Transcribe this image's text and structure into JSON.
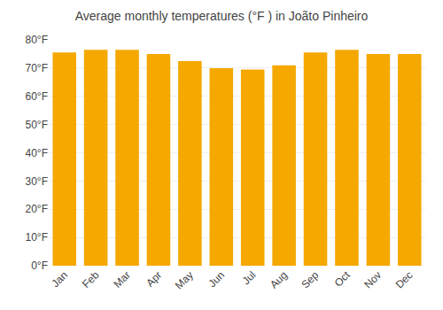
{
  "chart_data": {
    "type": "bar",
    "title": "Average monthly temperatures (°F ) in Joãto Pinheiro",
    "categories": [
      "Jan",
      "Feb",
      "Mar",
      "Apr",
      "May",
      "Jun",
      "Jul",
      "Aug",
      "Sep",
      "Oct",
      "Nov",
      "Dec"
    ],
    "values": [
      75.5,
      76.5,
      76.5,
      75.0,
      72.5,
      70.0,
      69.5,
      71.0,
      75.5,
      76.5,
      75.0,
      75.0
    ],
    "color": "#F5A800",
    "ylim": [
      0,
      80
    ],
    "yticks": [
      {
        "value": 0,
        "label": "0°F"
      },
      {
        "value": 10,
        "label": "10°F"
      },
      {
        "value": 20,
        "label": "20°F"
      },
      {
        "value": 30,
        "label": "30°F"
      },
      {
        "value": 40,
        "label": "40°F"
      },
      {
        "value": 50,
        "label": "50°F"
      },
      {
        "value": 60,
        "label": "60°F"
      },
      {
        "value": 70,
        "label": "70°F"
      },
      {
        "value": 80,
        "label": "80°F"
      }
    ],
    "grid": true
  }
}
